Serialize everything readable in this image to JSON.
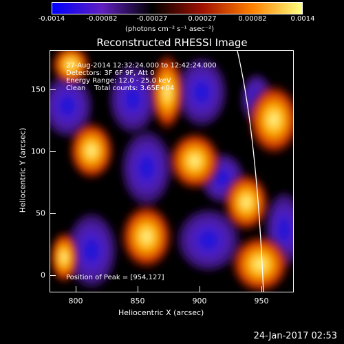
{
  "colorbar": {
    "ticks": [
      "-0.0014",
      "-0.00082",
      "-0.00027",
      "0.00027",
      "0.00082",
      "0.0014"
    ],
    "units": "(photons cm⁻² s⁻¹ asec⁻²)",
    "colors": [
      "#0000ff",
      "#6020c0",
      "#000000",
      "#a01000",
      "#ff8000",
      "#ffff80"
    ]
  },
  "title": "Reconstructed RHESSI Image",
  "info": {
    "line1": "27-Aug-2014 12:32:24.000 to 12:42:24.000",
    "line2": "Detectors: 3F 6F 9F, Att 0",
    "line3": "Energy Range: 12.0 - 25.0 keV",
    "line4": "Clean    Total counts: 3.65E+04",
    "peak": "Position of Peak = [954,127]"
  },
  "axes": {
    "x_ticks": [
      "800",
      "850",
      "900",
      "950"
    ],
    "y_ticks": [
      "150",
      "100",
      "50",
      "0"
    ],
    "xlabel": "Heliocentric X (arcsec)",
    "ylabel": "Heliocentric Y (arcsec)",
    "x_range": [
      782,
      975
    ],
    "y_range": [
      -12,
      180
    ]
  },
  "timestamp": "24-Jan-2017 02:53"
}
